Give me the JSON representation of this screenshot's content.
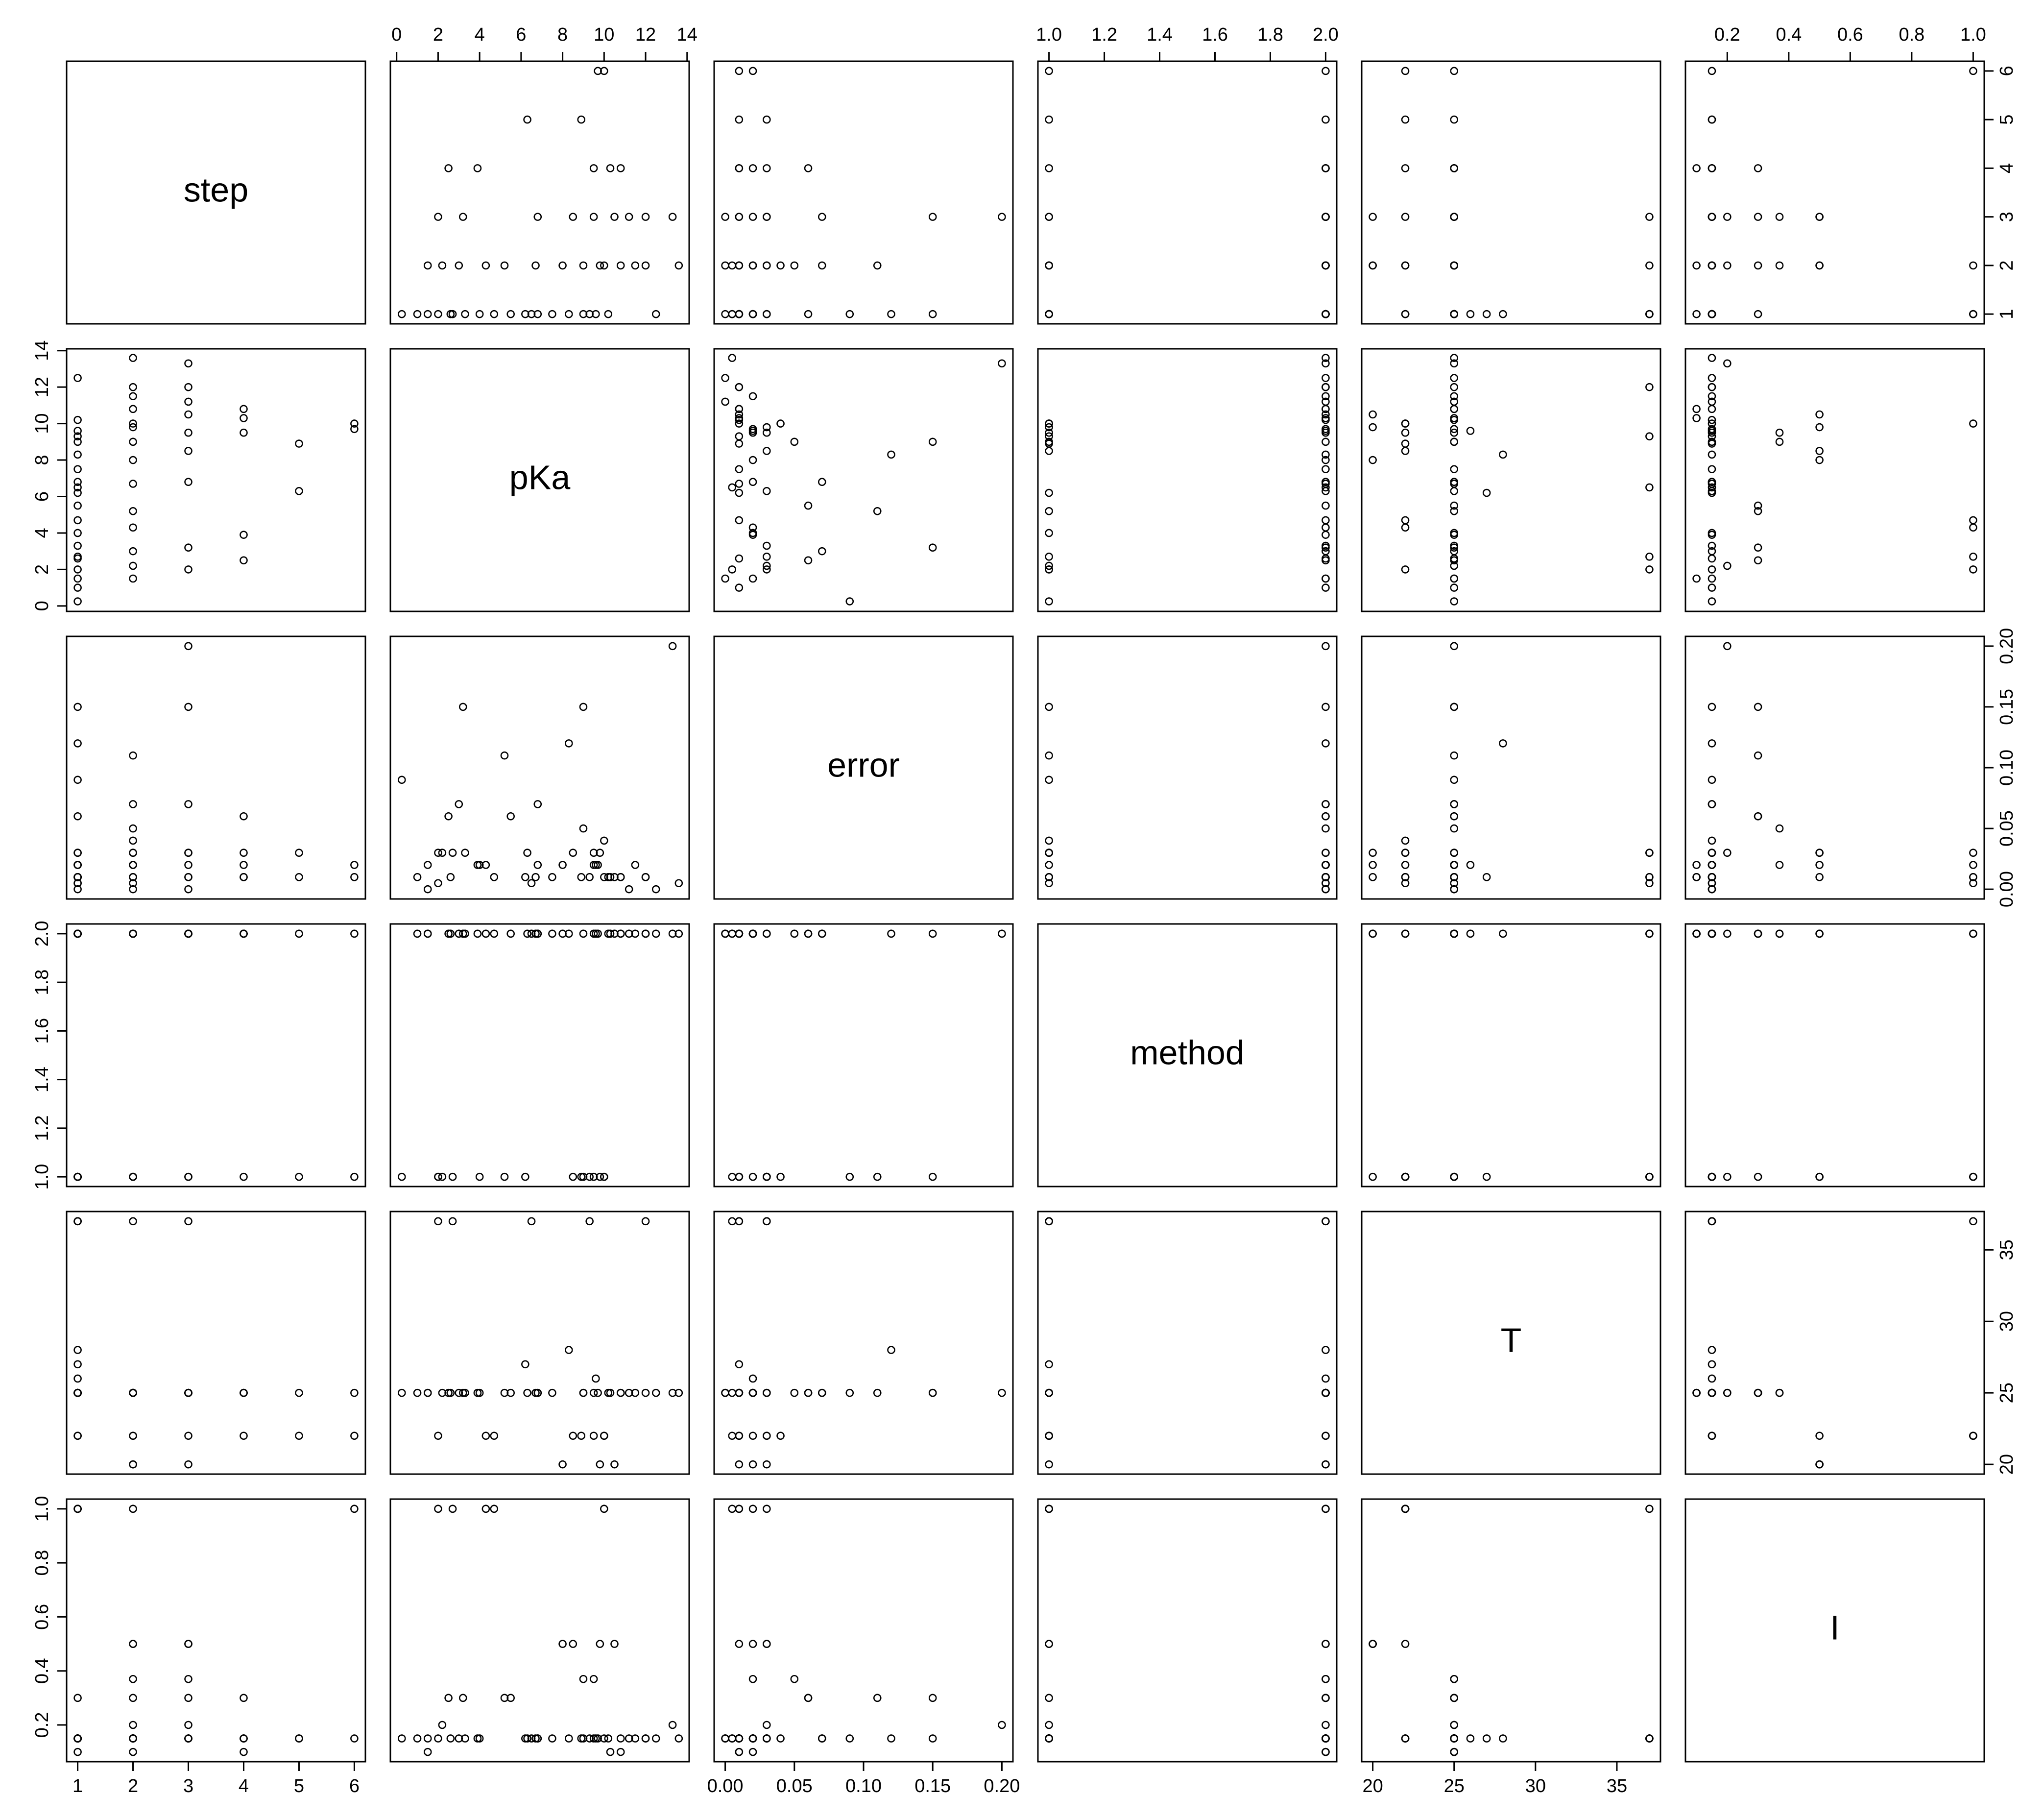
{
  "chart_data": {
    "type": "scatter_matrix",
    "variables": [
      {
        "name": "step",
        "lim": [
          0.8,
          6.2
        ],
        "ticks": [
          1,
          2,
          3,
          4,
          5,
          6
        ],
        "values": [
          1,
          1,
          1,
          1,
          1,
          1,
          1,
          1,
          1,
          1,
          1,
          1,
          1,
          1,
          1,
          1,
          1,
          1,
          1,
          1,
          2,
          2,
          2,
          2,
          2,
          2,
          2,
          2,
          2,
          2,
          2,
          2,
          2,
          2,
          3,
          3,
          3,
          3,
          3,
          3,
          3,
          3,
          3,
          4,
          4,
          4,
          4,
          4,
          5,
          5,
          6,
          6
        ]
      },
      {
        "name": "pKa",
        "lim": [
          -0.3,
          14.1
        ],
        "ticks": [
          0,
          2,
          4,
          6,
          8,
          10,
          12,
          14
        ],
        "values": [
          0.25,
          1.0,
          1.5,
          2.0,
          2.6,
          3.3,
          4.0,
          4.7,
          5.5,
          6.2,
          6.8,
          7.5,
          8.3,
          9.0,
          9.6,
          10.2,
          12.5,
          9.3,
          6.5,
          2.7,
          1.5,
          2.2,
          3.0,
          4.3,
          5.2,
          6.7,
          8.0,
          9.0,
          10.0,
          10.8,
          11.5,
          12.0,
          13.6,
          9.8,
          13.3,
          3.2,
          6.8,
          8.5,
          9.5,
          10.5,
          11.2,
          12.0,
          2.0,
          2.5,
          3.9,
          9.5,
          10.3,
          10.8,
          6.3,
          8.9,
          9.7,
          10.0
        ]
      },
      {
        "name": "error",
        "lim": [
          -0.008,
          0.208
        ],
        "ticks": [
          {
            "value": 0,
            "label": "0.00"
          },
          0.05,
          {
            "value": 0.1,
            "label": "0.10"
          },
          0.15,
          {
            "value": 0.2,
            "label": "0.20"
          }
        ],
        "values": [
          0.09,
          0.01,
          0.02,
          0.005,
          0.01,
          0.03,
          0.02,
          0.01,
          0.06,
          0.01,
          0.02,
          0.01,
          0.12,
          0.15,
          0.02,
          0.01,
          0,
          0.01,
          0.005,
          0.03,
          0,
          0.03,
          0.07,
          0.02,
          0.11,
          0.01,
          0.02,
          0.05,
          0.04,
          0.01,
          0.02,
          0.01,
          0.005,
          0.03,
          0.2,
          0.15,
          0.07,
          0.03,
          0.02,
          0.01,
          0,
          0.01,
          0.03,
          0.06,
          0.02,
          0.03,
          0.01,
          0.01,
          0.03,
          0.01,
          0.02,
          0.01
        ]
      },
      {
        "name": "method",
        "lim": [
          0.96,
          2.04
        ],
        "ticks": [
          {
            "value": 1,
            "label": "1.0"
          },
          1.2,
          1.4,
          1.6,
          1.8,
          {
            "value": 2,
            "label": "2.0"
          }
        ],
        "values": [
          1,
          2,
          2,
          1,
          2,
          2,
          1,
          2,
          2,
          1,
          2,
          2,
          2,
          1,
          2,
          2,
          2,
          1,
          2,
          1,
          2,
          1,
          2,
          2,
          1,
          2,
          2,
          2,
          1,
          2,
          2,
          2,
          2,
          1,
          2,
          2,
          2,
          1,
          2,
          2,
          2,
          2,
          1,
          2,
          2,
          1,
          2,
          2,
          2,
          1,
          2,
          1
        ]
      },
      {
        "name": "T",
        "lim": [
          19.32,
          37.68
        ],
        "ticks": [
          20,
          25,
          30,
          35
        ],
        "values": [
          25,
          25,
          25,
          22,
          25,
          25,
          25,
          22,
          25,
          27,
          25,
          25,
          28,
          25,
          26,
          25,
          25,
          37,
          37,
          37,
          25,
          25,
          25,
          22,
          25,
          25,
          20,
          25,
          22,
          25,
          25,
          37,
          25,
          20,
          25,
          25,
          25,
          22,
          25,
          20,
          25,
          25,
          37,
          25,
          25,
          22,
          25,
          25,
          25,
          22,
          25,
          22
        ]
      },
      {
        "name": "I",
        "lim": [
          0.064,
          1.036
        ],
        "ticks": [
          0.2,
          0.4,
          0.6,
          0.8,
          {
            "value": 1,
            "label": "1.0"
          }
        ],
        "values": [
          0.15,
          0.15,
          0.1,
          1,
          0.15,
          0.15,
          0.15,
          1,
          0.3,
          0.15,
          0.15,
          0.15,
          0.15,
          0.15,
          0.15,
          0.15,
          0.15,
          0.15,
          0.15,
          1,
          0.15,
          0.2,
          0.15,
          1,
          0.3,
          0.15,
          0.5,
          0.37,
          0.15,
          0.1,
          0.15,
          0.15,
          0.15,
          0.5,
          0.2,
          0.3,
          0.15,
          0.5,
          0.37,
          0.5,
          0.15,
          0.15,
          0.15,
          0.3,
          0.15,
          0.15,
          0.1,
          0.15,
          0.15,
          0.15,
          0.15,
          1
        ]
      }
    ]
  }
}
